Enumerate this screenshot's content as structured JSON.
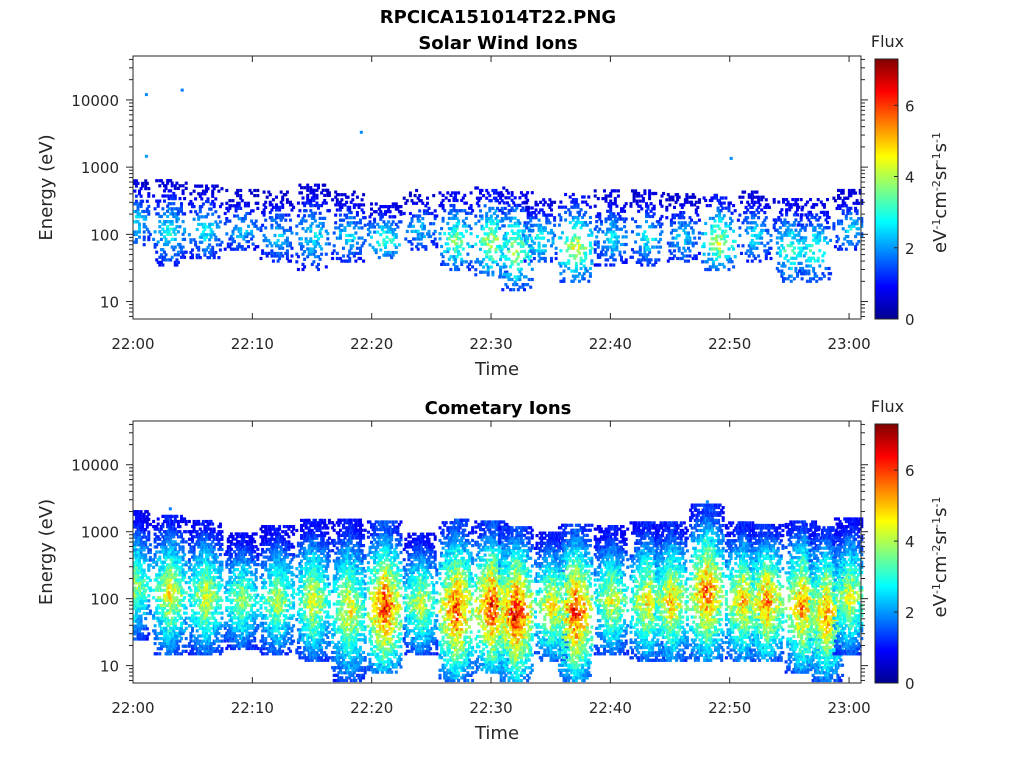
{
  "figure_title": "RPCICA151014T22.PNG",
  "colormap": [
    "#00008f",
    "#0000ff",
    "#0080ff",
    "#00ffff",
    "#80ff80",
    "#ffff00",
    "#ff8000",
    "#ff0000",
    "#800000"
  ],
  "chart_data": [
    {
      "type": "heatmap",
      "title": "Solar Wind Ions",
      "xlabel": "Time",
      "ylabel": "Energy (eV)",
      "x_scale": "time",
      "y_scale": "log",
      "xlim": [
        "22:00",
        "23:01"
      ],
      "ylim": [
        5.5,
        45000
      ],
      "x_ticks": [
        "22:00",
        "22:10",
        "22:20",
        "22:30",
        "22:40",
        "22:50",
        "23:00"
      ],
      "y_ticks": [
        "10",
        "100",
        "1000",
        "10000"
      ],
      "colorbar": {
        "label": "Flux",
        "units": "eV-1cm-2sr-1s-1",
        "range": [
          0,
          7.3
        ],
        "ticks": [
          "0",
          "2",
          "4",
          "6"
        ]
      },
      "bursts": [
        {
          "t": "22:00",
          "e_min": 70,
          "e_max": 700,
          "peak": 2.8
        },
        {
          "t": "22:03",
          "e_min": 35,
          "e_max": 650,
          "peak": 3.0
        },
        {
          "t": "22:06",
          "e_min": 45,
          "e_max": 550,
          "peak": 3.0
        },
        {
          "t": "22:09",
          "e_min": 60,
          "e_max": 450,
          "peak": 2.6
        },
        {
          "t": "22:12",
          "e_min": 40,
          "e_max": 450,
          "peak": 2.6
        },
        {
          "t": "22:15",
          "e_min": 30,
          "e_max": 550,
          "peak": 2.9
        },
        {
          "t": "22:18",
          "e_min": 40,
          "e_max": 450,
          "peak": 2.8
        },
        {
          "t": "22:21",
          "e_min": 45,
          "e_max": 300,
          "peak": 3.6
        },
        {
          "t": "22:24",
          "e_min": 60,
          "e_max": 450,
          "peak": 2.6
        },
        {
          "t": "22:27",
          "e_min": 30,
          "e_max": 450,
          "peak": 3.8
        },
        {
          "t": "22:30",
          "e_min": 25,
          "e_max": 500,
          "peak": 4.3
        },
        {
          "t": "22:32",
          "e_min": 15,
          "e_max": 450,
          "peak": 4.2
        },
        {
          "t": "22:34",
          "e_min": 40,
          "e_max": 350,
          "peak": 3.2
        },
        {
          "t": "22:37",
          "e_min": 20,
          "e_max": 400,
          "peak": 4.6
        },
        {
          "t": "22:40",
          "e_min": 35,
          "e_max": 450,
          "peak": 2.8
        },
        {
          "t": "22:43",
          "e_min": 35,
          "e_max": 450,
          "peak": 2.9
        },
        {
          "t": "22:46",
          "e_min": 40,
          "e_max": 400,
          "peak": 2.7
        },
        {
          "t": "22:49",
          "e_min": 30,
          "e_max": 400,
          "peak": 4.4
        },
        {
          "t": "22:52",
          "e_min": 40,
          "e_max": 450,
          "peak": 2.8
        },
        {
          "t": "22:55",
          "e_min": 20,
          "e_max": 350,
          "peak": 3.5
        },
        {
          "t": "22:57",
          "e_min": 20,
          "e_max": 350,
          "peak": 3.4
        },
        {
          "t": "23:00",
          "e_min": 60,
          "e_max": 450,
          "peak": 2.7
        }
      ],
      "isolated_points": [
        {
          "t": "22:01",
          "e": 12000,
          "v": 1.9
        },
        {
          "t": "22:04",
          "e": 14000,
          "v": 1.8
        },
        {
          "t": "22:19",
          "e": 3300,
          "v": 1.9
        },
        {
          "t": "22:50",
          "e": 1350,
          "v": 1.9
        },
        {
          "t": "22:01",
          "e": 1450,
          "v": 2.0
        }
      ]
    },
    {
      "type": "heatmap",
      "title": "Cometary Ions",
      "xlabel": "Time",
      "ylabel": "Energy (eV)",
      "x_scale": "time",
      "y_scale": "log",
      "xlim": [
        "22:00",
        "23:01"
      ],
      "ylim": [
        5.5,
        45000
      ],
      "x_ticks": [
        "22:00",
        "22:10",
        "22:20",
        "22:30",
        "22:40",
        "22:50",
        "23:00"
      ],
      "y_ticks": [
        "10",
        "100",
        "1000",
        "10000"
      ],
      "colorbar": {
        "label": "Flux",
        "units": "eV-1cm-2sr-1s-1",
        "range": [
          0,
          7.3
        ],
        "ticks": [
          "0",
          "2",
          "4",
          "6"
        ]
      },
      "bursts": [
        {
          "t": "22:00",
          "e_min": 25,
          "e_max": 2000,
          "peak": 4.2
        },
        {
          "t": "22:03",
          "e_min": 15,
          "e_max": 1800,
          "peak": 4.8
        },
        {
          "t": "22:06",
          "e_min": 15,
          "e_max": 1500,
          "peak": 4.6
        },
        {
          "t": "22:09",
          "e_min": 18,
          "e_max": 1000,
          "peak": 4.2
        },
        {
          "t": "22:12",
          "e_min": 15,
          "e_max": 1200,
          "peak": 4.4
        },
        {
          "t": "22:15",
          "e_min": 12,
          "e_max": 1500,
          "peak": 4.7
        },
        {
          "t": "22:18",
          "e_min": 6,
          "e_max": 1500,
          "peak": 4.8
        },
        {
          "t": "22:21",
          "e_min": 8,
          "e_max": 1400,
          "peak": 6.5
        },
        {
          "t": "22:24",
          "e_min": 15,
          "e_max": 1000,
          "peak": 4.5
        },
        {
          "t": "22:27",
          "e_min": 6,
          "e_max": 1500,
          "peak": 6.3
        },
        {
          "t": "22:30",
          "e_min": 8,
          "e_max": 1400,
          "peak": 6.6
        },
        {
          "t": "22:32",
          "e_min": 6,
          "e_max": 1200,
          "peak": 6.8
        },
        {
          "t": "22:35",
          "e_min": 12,
          "e_max": 1000,
          "peak": 5.0
        },
        {
          "t": "22:37",
          "e_min": 6,
          "e_max": 1300,
          "peak": 6.5
        },
        {
          "t": "22:40",
          "e_min": 15,
          "e_max": 1200,
          "peak": 4.7
        },
        {
          "t": "22:43",
          "e_min": 12,
          "e_max": 1400,
          "peak": 5.0
        },
        {
          "t": "22:45",
          "e_min": 12,
          "e_max": 1400,
          "peak": 5.3
        },
        {
          "t": "22:48",
          "e_min": 12,
          "e_max": 2500,
          "peak": 6.0
        },
        {
          "t": "22:51",
          "e_min": 12,
          "e_max": 1400,
          "peak": 5.2
        },
        {
          "t": "22:53",
          "e_min": 12,
          "e_max": 1300,
          "peak": 5.8
        },
        {
          "t": "22:56",
          "e_min": 8,
          "e_max": 1500,
          "peak": 5.7
        },
        {
          "t": "22:58",
          "e_min": 6,
          "e_max": 1200,
          "peak": 5.6
        },
        {
          "t": "23:00",
          "e_min": 15,
          "e_max": 1600,
          "peak": 4.6
        }
      ],
      "isolated_points": [
        {
          "t": "22:48",
          "e": 2800,
          "v": 1.9
        },
        {
          "t": "22:03",
          "e": 2200,
          "v": 1.8
        }
      ]
    }
  ]
}
